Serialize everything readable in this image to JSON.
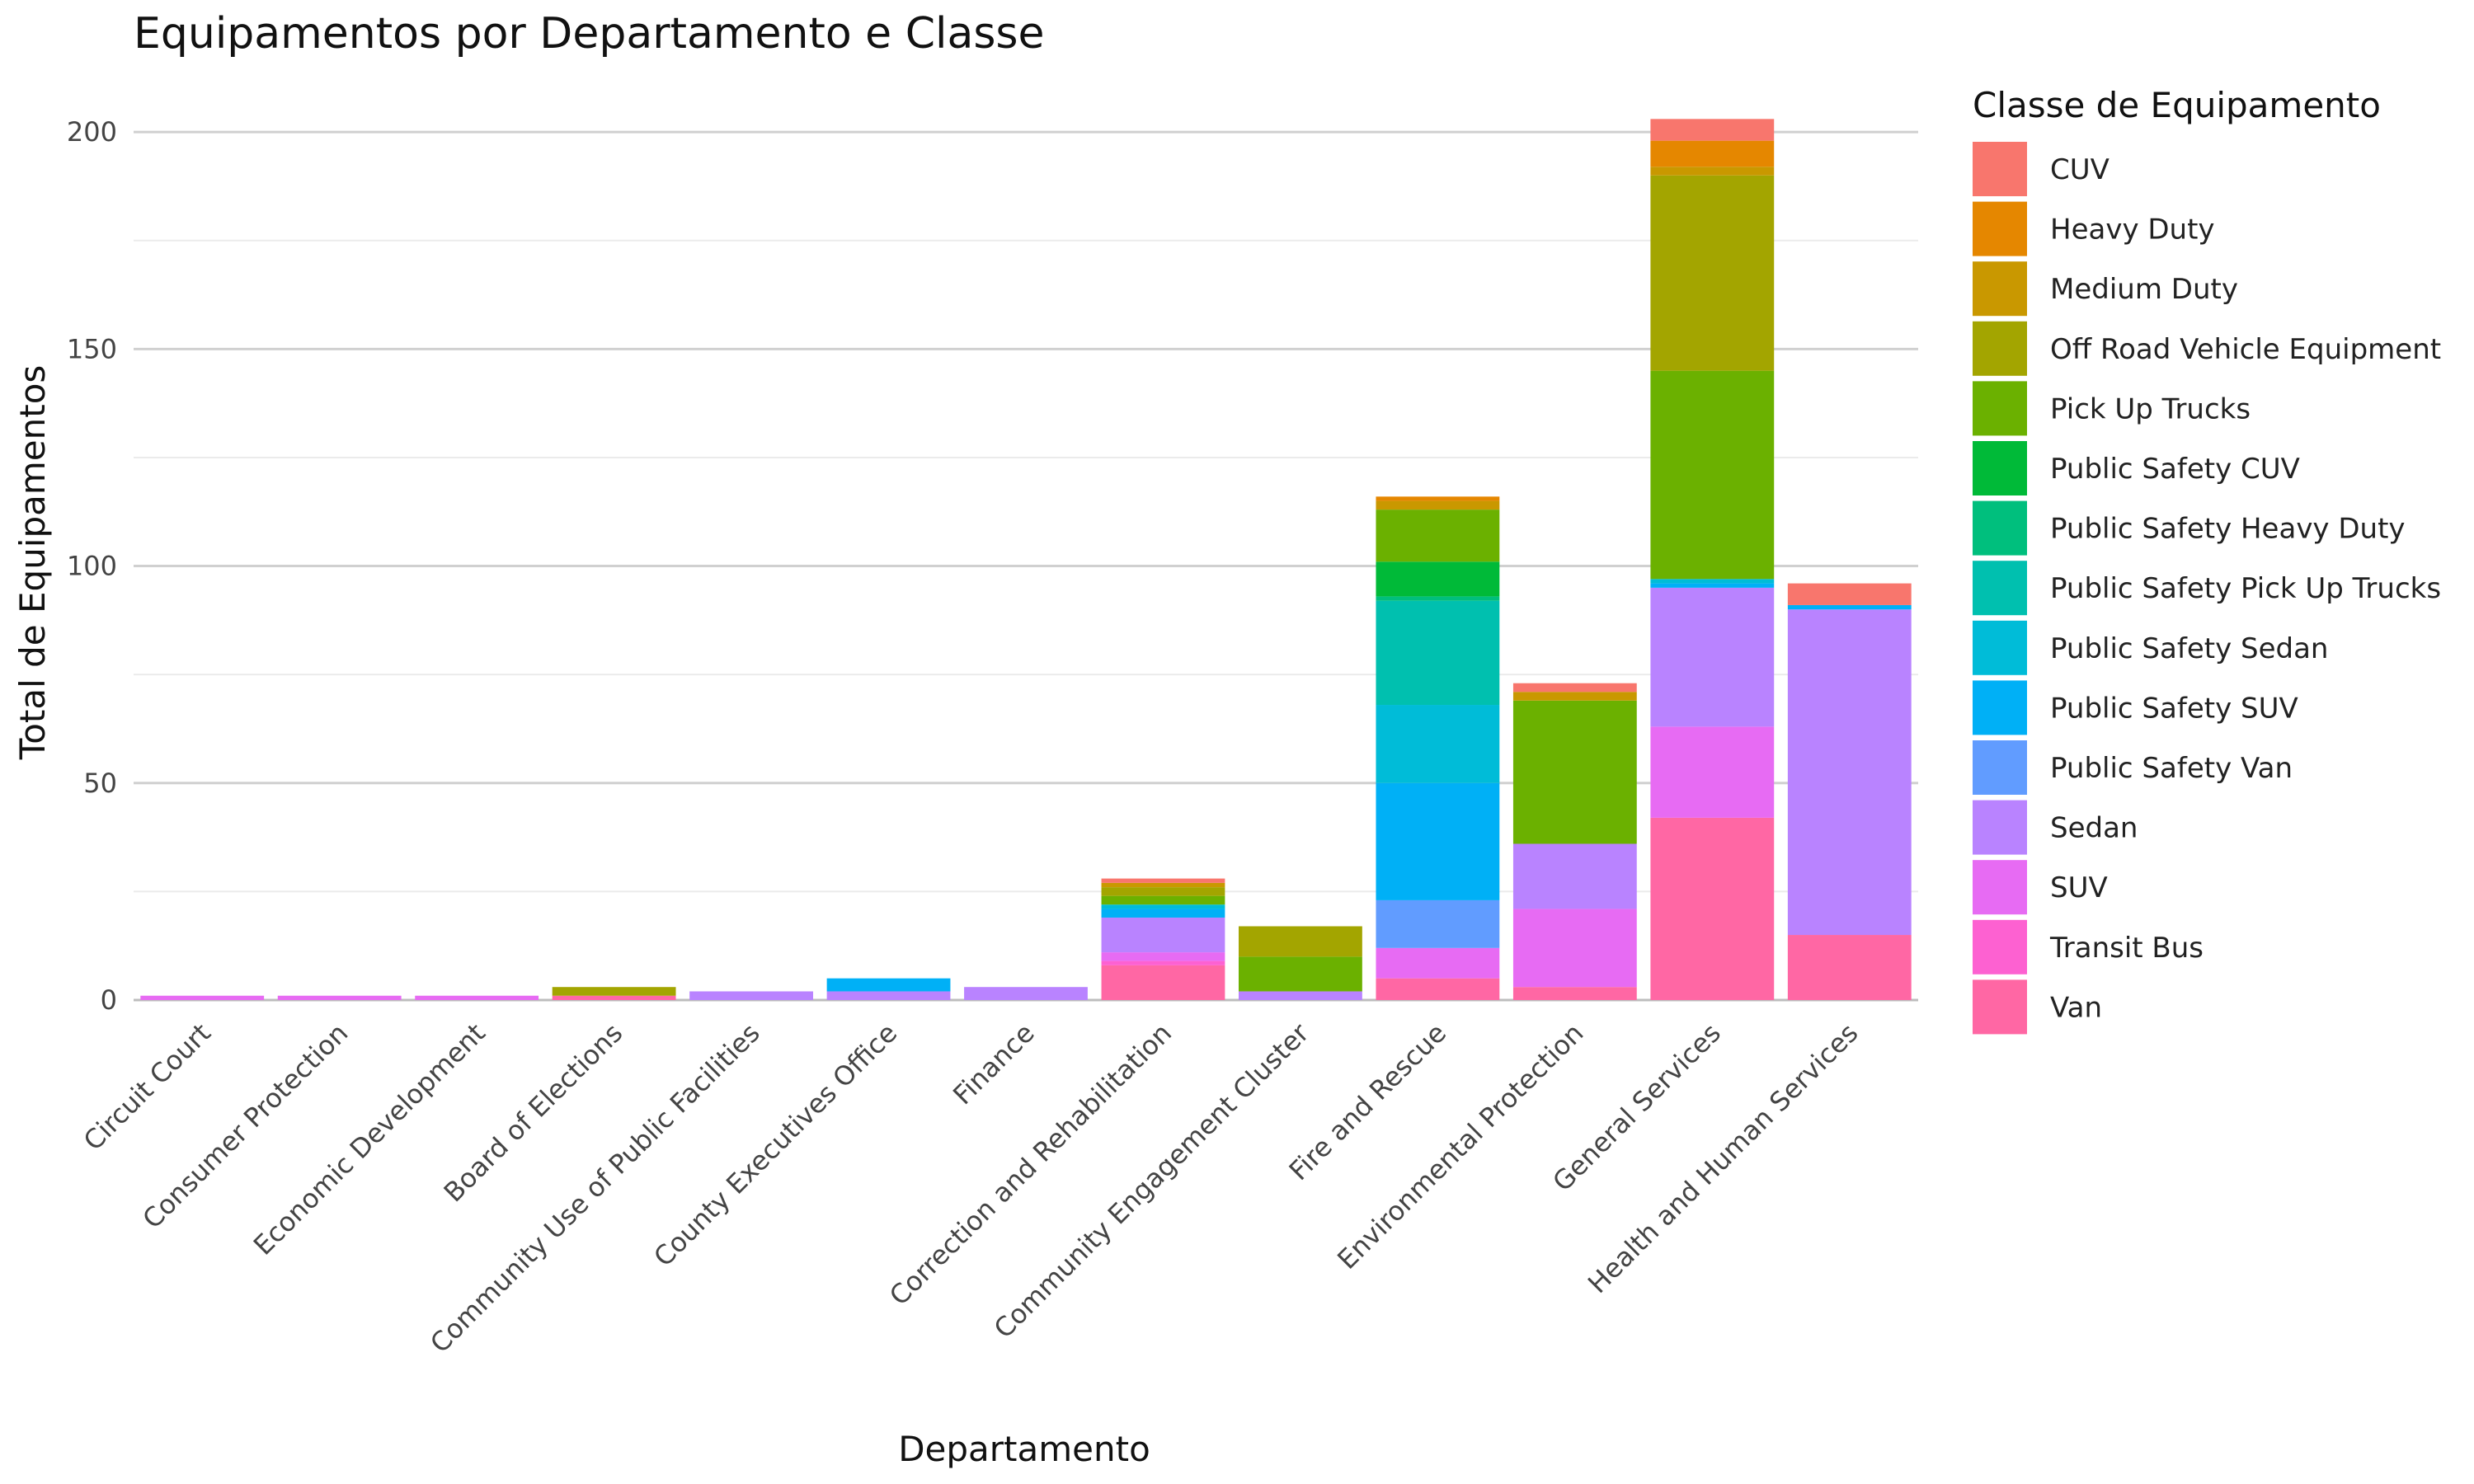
{
  "chart_data": {
    "type": "bar",
    "stacked": true,
    "title": "Equipamentos por Departamento e Classe",
    "xlabel": "Departamento",
    "ylabel": "Total de Equipamentos",
    "ylim": [
      0,
      208
    ],
    "y_ticks": [
      0,
      50,
      100,
      150,
      200
    ],
    "grid": true,
    "legend_title": "Classe de Equipamento",
    "legend_position": "right",
    "categories": [
      "Circuit Court",
      "Consumer Protection",
      "Economic Development",
      "Board of Elections",
      "Community Use of Public Facilities",
      "County Executives Office",
      "Finance",
      "Correction and Rehabilitation",
      "Community Engagement Cluster",
      "Fire and Rescue",
      "Environmental Protection",
      "General Services",
      "Health and Human Services"
    ],
    "series": [
      {
        "name": "CUV",
        "color": "#F8766D",
        "values": [
          0,
          0,
          0,
          0,
          0,
          0,
          0,
          1,
          0,
          0,
          2,
          5,
          5
        ]
      },
      {
        "name": "Heavy Duty",
        "color": "#E58700",
        "values": [
          0,
          0,
          0,
          0,
          0,
          0,
          0,
          0,
          0,
          1,
          0,
          6,
          0
        ]
      },
      {
        "name": "Medium Duty",
        "color": "#C99800",
        "values": [
          0,
          0,
          0,
          0,
          0,
          0,
          0,
          1,
          0,
          2,
          2,
          2,
          0
        ]
      },
      {
        "name": "Off Road Vehicle Equipment",
        "color": "#A3A500",
        "values": [
          0,
          0,
          0,
          2,
          0,
          0,
          0,
          2,
          7,
          0,
          0,
          45,
          0
        ]
      },
      {
        "name": "Pick Up Trucks",
        "color": "#6BB100",
        "values": [
          0,
          0,
          0,
          0,
          0,
          0,
          0,
          2,
          8,
          12,
          33,
          48,
          0
        ]
      },
      {
        "name": "Public Safety CUV",
        "color": "#00BA38",
        "values": [
          0,
          0,
          0,
          0,
          0,
          0,
          0,
          0,
          0,
          8,
          0,
          0,
          0
        ]
      },
      {
        "name": "Public Safety Heavy Duty",
        "color": "#00BF7D",
        "values": [
          0,
          0,
          0,
          0,
          0,
          0,
          0,
          0,
          0,
          1,
          0,
          0,
          0
        ]
      },
      {
        "name": "Public Safety Pick Up Trucks",
        "color": "#00C0AF",
        "values": [
          0,
          0,
          0,
          0,
          0,
          0,
          0,
          0,
          0,
          24,
          0,
          0,
          0
        ]
      },
      {
        "name": "Public Safety Sedan",
        "color": "#00BCD8",
        "values": [
          0,
          0,
          0,
          0,
          0,
          0,
          0,
          1,
          0,
          18,
          0,
          1,
          0
        ]
      },
      {
        "name": "Public Safety SUV",
        "color": "#00B0F6",
        "values": [
          0,
          0,
          0,
          0,
          0,
          3,
          0,
          2,
          0,
          27,
          0,
          1,
          1
        ]
      },
      {
        "name": "Public Safety Van",
        "color": "#619CFF",
        "values": [
          0,
          0,
          0,
          0,
          0,
          0,
          0,
          0,
          0,
          11,
          0,
          0,
          0
        ]
      },
      {
        "name": "Sedan",
        "color": "#B983FF",
        "values": [
          0,
          0,
          0,
          0,
          2,
          2,
          3,
          8,
          2,
          0,
          15,
          32,
          75
        ]
      },
      {
        "name": "SUV",
        "color": "#E76BF3",
        "values": [
          1,
          1,
          1,
          0,
          0,
          0,
          0,
          2,
          0,
          7,
          18,
          21,
          0
        ]
      },
      {
        "name": "Transit Bus",
        "color": "#FD61D1",
        "values": [
          0,
          0,
          0,
          0,
          0,
          0,
          0,
          1,
          0,
          0,
          0,
          0,
          0
        ]
      },
      {
        "name": "Van",
        "color": "#FF67A4",
        "values": [
          0,
          0,
          0,
          1,
          0,
          0,
          0,
          8,
          0,
          5,
          3,
          42,
          15
        ]
      }
    ]
  }
}
